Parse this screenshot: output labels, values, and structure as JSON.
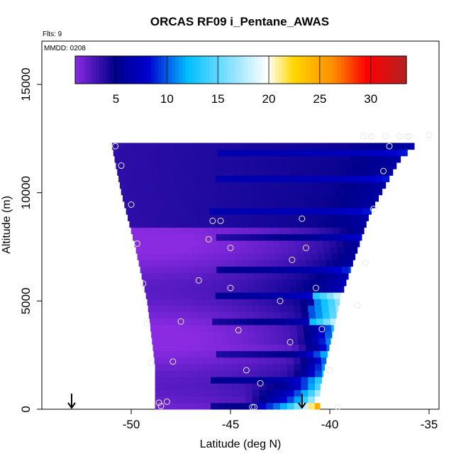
{
  "chart_data": {
    "type": "heatmap",
    "title": "ORCAS RF09 i_Pentane_AWAS",
    "flights_label": "Flts: 9",
    "date_label": "MMDD: 0208",
    "xlabel": "Latitude (deg N)",
    "ylabel": "Altitude (m)",
    "xlim": [
      -54.5,
      -34.5
    ],
    "ylim": [
      0,
      17000
    ],
    "x_ticks": [
      -50,
      -45,
      -40,
      -35
    ],
    "y_ticks": [
      0,
      5000,
      10000,
      15000
    ],
    "colorbar": {
      "range": [
        1,
        33.5
      ],
      "ticks": [
        5,
        10,
        15,
        20,
        25,
        30
      ],
      "colors": [
        "#8a2be2",
        "#00008b",
        "#0000cd",
        "#00bfff",
        "#ffffff",
        "#ffd700",
        "#ff8c00",
        "#ff0000",
        "#b22222"
      ]
    },
    "region_boundary": {
      "left": [
        [
          -51,
          12300
        ],
        [
          -50.5,
          10000
        ],
        [
          -49.8,
          7500
        ],
        [
          -49.2,
          5000
        ],
        [
          -48.8,
          2000
        ],
        [
          -48.8,
          0
        ]
      ],
      "right": [
        [
          -35,
          12800
        ],
        [
          -36.5,
          11500
        ],
        [
          -38,
          9000
        ],
        [
          -39.5,
          5000
        ],
        [
          -40.5,
          1000
        ],
        [
          -40.5,
          0
        ]
      ],
      "top_left": [
        -51,
        12300
      ],
      "top_right": [
        -35,
        12800
      ]
    },
    "samples": [
      {
        "lat": -50.8,
        "alt": 12150
      },
      {
        "lat": -50.5,
        "alt": 11250
      },
      {
        "lat": -50.0,
        "alt": 9450
      },
      {
        "lat": -49.7,
        "alt": 7650
      },
      {
        "lat": -49.4,
        "alt": 5800
      },
      {
        "lat": -49.2,
        "alt": 3950
      },
      {
        "lat": -49.0,
        "alt": 2150
      },
      {
        "lat": -48.6,
        "alt": 300
      },
      {
        "lat": -48.5,
        "alt": 150
      },
      {
        "lat": -48.2,
        "alt": 350
      },
      {
        "lat": -47.9,
        "alt": 2200
      },
      {
        "lat": -47.5,
        "alt": 4050
      },
      {
        "lat": -46.6,
        "alt": 5950
      },
      {
        "lat": -46.1,
        "alt": 7850
      },
      {
        "lat": -45.9,
        "alt": 8700
      },
      {
        "lat": -45.5,
        "alt": 8700
      },
      {
        "lat": -45.0,
        "alt": 7450
      },
      {
        "lat": -45.0,
        "alt": 5600
      },
      {
        "lat": -44.6,
        "alt": 3650
      },
      {
        "lat": -44.2,
        "alt": 1800
      },
      {
        "lat": -43.9,
        "alt": 100
      },
      {
        "lat": -43.8,
        "alt": 100
      },
      {
        "lat": -43.5,
        "alt": 1200
      },
      {
        "lat": -42.5,
        "alt": 5000
      },
      {
        "lat": -42.0,
        "alt": 3100
      },
      {
        "lat": -41.9,
        "alt": 6900
      },
      {
        "lat": -41.4,
        "alt": 8800
      },
      {
        "lat": -41.2,
        "alt": 7450
      },
      {
        "lat": -40.7,
        "alt": 5600
      },
      {
        "lat": -40.4,
        "alt": 3700
      },
      {
        "lat": -40.0,
        "alt": 1800
      },
      {
        "lat": -39.6,
        "alt": 100
      },
      {
        "lat": -38.6,
        "alt": 4800
      },
      {
        "lat": -38.2,
        "alt": 6750
      },
      {
        "lat": -37.8,
        "alt": 9250
      },
      {
        "lat": -37.3,
        "alt": 11000
      },
      {
        "lat": -37.0,
        "alt": 12150
      },
      {
        "lat": -37.2,
        "alt": 12600
      },
      {
        "lat": -36.5,
        "alt": 12600
      },
      {
        "lat": -36.1,
        "alt": 12600
      },
      {
        "lat": -36.0,
        "alt": 12600
      },
      {
        "lat": -35.0,
        "alt": 12650
      },
      {
        "lat": -38.3,
        "alt": 12600
      },
      {
        "lat": -37.9,
        "alt": 12600
      }
    ],
    "arrows": [
      {
        "lat": -53.0
      },
      {
        "lat": -41.4
      }
    ]
  }
}
